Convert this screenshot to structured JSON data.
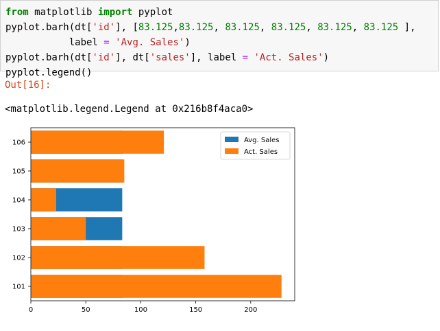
{
  "code_cell": {
    "lines": [
      [
        {
          "t": "from",
          "c": "kw"
        },
        {
          "t": " matplotlib "
        },
        {
          "t": "import",
          "c": "kw"
        },
        {
          "t": " pyplot"
        }
      ],
      [
        {
          "t": "pyplot.barh(dt["
        },
        {
          "t": "'id'",
          "c": "str"
        },
        {
          "t": "], ["
        },
        {
          "t": "83.125",
          "c": "num"
        },
        {
          "t": ","
        },
        {
          "t": "83.125",
          "c": "num"
        },
        {
          "t": ", "
        },
        {
          "t": "83.125",
          "c": "num"
        },
        {
          "t": ", "
        },
        {
          "t": "83.125",
          "c": "num"
        },
        {
          "t": ", "
        },
        {
          "t": "83.125",
          "c": "num"
        },
        {
          "t": ", "
        },
        {
          "t": "83.125",
          "c": "num"
        },
        {
          "t": " ],"
        }
      ],
      [
        {
          "t": "           label "
        },
        {
          "t": "=",
          "c": "kwp"
        },
        {
          "t": " "
        },
        {
          "t": "'Avg. Sales'",
          "c": "str"
        },
        {
          "t": ")"
        }
      ],
      [
        {
          "t": "pyplot.barh(dt["
        },
        {
          "t": "'id'",
          "c": "str"
        },
        {
          "t": "], dt["
        },
        {
          "t": "'sales'",
          "c": "str"
        },
        {
          "t": "], label "
        },
        {
          "t": "=",
          "c": "kwp"
        },
        {
          "t": " "
        },
        {
          "t": "'Act. Sales'",
          "c": "str"
        },
        {
          "t": ")"
        }
      ],
      [
        {
          "t": "pyplot.legend()"
        }
      ]
    ]
  },
  "output": {
    "prompt": "Out[16]:",
    "text": "<matplotlib.legend.Legend at 0x216b8f4aca0>"
  },
  "chart_data": {
    "type": "bar",
    "orientation": "horizontal",
    "categories": [
      "101",
      "102",
      "103",
      "104",
      "105",
      "106"
    ],
    "series": [
      {
        "name": "Avg. Sales",
        "color": "#1f77b4",
        "values": [
          83.125,
          83.125,
          83.125,
          83.125,
          83.125,
          83.125
        ]
      },
      {
        "name": "Act. Sales",
        "color": "#ff7f0e",
        "values": [
          228,
          158,
          50,
          23,
          85,
          121
        ]
      }
    ],
    "xlim": [
      0,
      240
    ],
    "xticks": [
      0,
      50,
      100,
      150,
      200
    ],
    "legend": "top-right",
    "grid": false
  }
}
